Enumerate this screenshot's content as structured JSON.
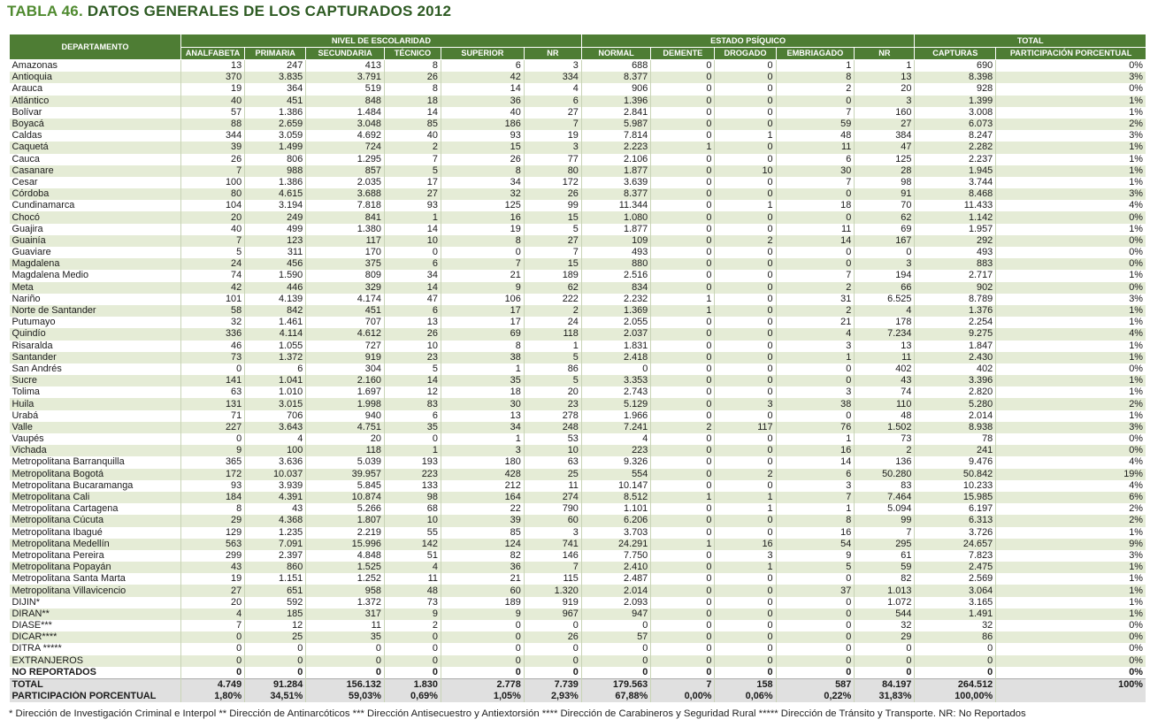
{
  "title": {
    "prefix": "TABLA 46.",
    "main": "DATOS GENERALES DE LOS CAPTURADOS",
    "year": "2012"
  },
  "headers": {
    "departamento": "DEPARTAMENTO",
    "groups": [
      "NIVEL DE ESCOLARIDAD",
      "ESTADO PSÍQUICO",
      "TOTAL"
    ],
    "columns": [
      "ANALFABETA",
      "PRIMARIA",
      "SECUNDARIA",
      "TÉCNICO",
      "SUPERIOR",
      "NR",
      "NORMAL",
      "DEMENTE",
      "DROGADO",
      "EMBRIAGADO",
      "NR",
      "CAPTURAS",
      "PARTICIPACIÓN PORCENTUAL"
    ]
  },
  "rows": [
    [
      "Amazonas",
      "13",
      "247",
      "413",
      "8",
      "6",
      "3",
      "688",
      "0",
      "0",
      "1",
      "1",
      "690",
      "0%"
    ],
    [
      "Antioquia",
      "370",
      "3.835",
      "3.791",
      "26",
      "42",
      "334",
      "8.377",
      "0",
      "0",
      "8",
      "13",
      "8.398",
      "3%"
    ],
    [
      "Arauca",
      "19",
      "364",
      "519",
      "8",
      "14",
      "4",
      "906",
      "0",
      "0",
      "2",
      "20",
      "928",
      "0%"
    ],
    [
      "Atlántico",
      "40",
      "451",
      "848",
      "18",
      "36",
      "6",
      "1.396",
      "0",
      "0",
      "0",
      "3",
      "1.399",
      "1%"
    ],
    [
      "Bolívar",
      "57",
      "1.386",
      "1.484",
      "14",
      "40",
      "27",
      "2.841",
      "0",
      "0",
      "7",
      "160",
      "3.008",
      "1%"
    ],
    [
      "Boyacá",
      "88",
      "2.659",
      "3.048",
      "85",
      "186",
      "7",
      "5.987",
      "0",
      "0",
      "59",
      "27",
      "6.073",
      "2%"
    ],
    [
      "Caldas",
      "344",
      "3.059",
      "4.692",
      "40",
      "93",
      "19",
      "7.814",
      "0",
      "1",
      "48",
      "384",
      "8.247",
      "3%"
    ],
    [
      "Caquetá",
      "39",
      "1.499",
      "724",
      "2",
      "15",
      "3",
      "2.223",
      "1",
      "0",
      "11",
      "47",
      "2.282",
      "1%"
    ],
    [
      "Cauca",
      "26",
      "806",
      "1.295",
      "7",
      "26",
      "77",
      "2.106",
      "0",
      "0",
      "6",
      "125",
      "2.237",
      "1%"
    ],
    [
      "Casanare",
      "7",
      "988",
      "857",
      "5",
      "8",
      "80",
      "1.877",
      "0",
      "10",
      "30",
      "28",
      "1.945",
      "1%"
    ],
    [
      "Cesar",
      "100",
      "1.386",
      "2.035",
      "17",
      "34",
      "172",
      "3.639",
      "0",
      "0",
      "7",
      "98",
      "3.744",
      "1%"
    ],
    [
      "Córdoba",
      "80",
      "4.615",
      "3.688",
      "27",
      "32",
      "26",
      "8.377",
      "0",
      "0",
      "0",
      "91",
      "8.468",
      "3%"
    ],
    [
      "Cundinamarca",
      "104",
      "3.194",
      "7.818",
      "93",
      "125",
      "99",
      "11.344",
      "0",
      "1",
      "18",
      "70",
      "11.433",
      "4%"
    ],
    [
      "Chocó",
      "20",
      "249",
      "841",
      "1",
      "16",
      "15",
      "1.080",
      "0",
      "0",
      "0",
      "62",
      "1.142",
      "0%"
    ],
    [
      "Guajira",
      "40",
      "499",
      "1.380",
      "14",
      "19",
      "5",
      "1.877",
      "0",
      "0",
      "11",
      "69",
      "1.957",
      "1%"
    ],
    [
      "Guainía",
      "7",
      "123",
      "117",
      "10",
      "8",
      "27",
      "109",
      "0",
      "2",
      "14",
      "167",
      "292",
      "0%"
    ],
    [
      "Guaviare",
      "5",
      "311",
      "170",
      "0",
      "0",
      "7",
      "493",
      "0",
      "0",
      "0",
      "0",
      "493",
      "0%"
    ],
    [
      "Magdalena",
      "24",
      "456",
      "375",
      "6",
      "7",
      "15",
      "880",
      "0",
      "0",
      "0",
      "3",
      "883",
      "0%"
    ],
    [
      "Magdalena Medio",
      "74",
      "1.590",
      "809",
      "34",
      "21",
      "189",
      "2.516",
      "0",
      "0",
      "7",
      "194",
      "2.717",
      "1%"
    ],
    [
      "Meta",
      "42",
      "446",
      "329",
      "14",
      "9",
      "62",
      "834",
      "0",
      "0",
      "2",
      "66",
      "902",
      "0%"
    ],
    [
      "Nariño",
      "101",
      "4.139",
      "4.174",
      "47",
      "106",
      "222",
      "2.232",
      "1",
      "0",
      "31",
      "6.525",
      "8.789",
      "3%"
    ],
    [
      "Norte de Santander",
      "58",
      "842",
      "451",
      "6",
      "17",
      "2",
      "1.369",
      "1",
      "0",
      "2",
      "4",
      "1.376",
      "1%"
    ],
    [
      "Putumayo",
      "32",
      "1.461",
      "707",
      "13",
      "17",
      "24",
      "2.055",
      "0",
      "0",
      "21",
      "178",
      "2.254",
      "1%"
    ],
    [
      "Quindío",
      "336",
      "4.114",
      "4.612",
      "26",
      "69",
      "118",
      "2.037",
      "0",
      "0",
      "4",
      "7.234",
      "9.275",
      "4%"
    ],
    [
      "Risaralda",
      "46",
      "1.055",
      "727",
      "10",
      "8",
      "1",
      "1.831",
      "0",
      "0",
      "3",
      "13",
      "1.847",
      "1%"
    ],
    [
      "Santander",
      "73",
      "1.372",
      "919",
      "23",
      "38",
      "5",
      "2.418",
      "0",
      "0",
      "1",
      "11",
      "2.430",
      "1%"
    ],
    [
      "San Andrés",
      "0",
      "6",
      "304",
      "5",
      "1",
      "86",
      "0",
      "0",
      "0",
      "0",
      "402",
      "402",
      "0%"
    ],
    [
      "Sucre",
      "141",
      "1.041",
      "2.160",
      "14",
      "35",
      "5",
      "3.353",
      "0",
      "0",
      "0",
      "43",
      "3.396",
      "1%"
    ],
    [
      "Tolima",
      "63",
      "1.010",
      "1.697",
      "12",
      "18",
      "20",
      "2.743",
      "0",
      "0",
      "3",
      "74",
      "2.820",
      "1%"
    ],
    [
      "Huila",
      "131",
      "3.015",
      "1.998",
      "83",
      "30",
      "23",
      "5.129",
      "0",
      "3",
      "38",
      "110",
      "5.280",
      "2%"
    ],
    [
      "Urabá",
      "71",
      "706",
      "940",
      "6",
      "13",
      "278",
      "1.966",
      "0",
      "0",
      "0",
      "48",
      "2.014",
      "1%"
    ],
    [
      "Valle",
      "227",
      "3.643",
      "4.751",
      "35",
      "34",
      "248",
      "7.241",
      "2",
      "117",
      "76",
      "1.502",
      "8.938",
      "3%"
    ],
    [
      "Vaupés",
      "0",
      "4",
      "20",
      "0",
      "1",
      "53",
      "4",
      "0",
      "0",
      "1",
      "73",
      "78",
      "0%"
    ],
    [
      "Vichada",
      "9",
      "100",
      "118",
      "1",
      "3",
      "10",
      "223",
      "0",
      "0",
      "16",
      "2",
      "241",
      "0%"
    ],
    [
      "Metropolitana Barranquilla",
      "365",
      "3.636",
      "5.039",
      "193",
      "180",
      "63",
      "9.326",
      "0",
      "0",
      "14",
      "136",
      "9.476",
      "4%"
    ],
    [
      "Metropolitana Bogotá",
      "172",
      "10.037",
      "39.957",
      "223",
      "428",
      "25",
      "554",
      "0",
      "2",
      "6",
      "50.280",
      "50.842",
      "19%"
    ],
    [
      "Metropolitana Bucaramanga",
      "93",
      "3.939",
      "5.845",
      "133",
      "212",
      "11",
      "10.147",
      "0",
      "0",
      "3",
      "83",
      "10.233",
      "4%"
    ],
    [
      "Metropolitana Cali",
      "184",
      "4.391",
      "10.874",
      "98",
      "164",
      "274",
      "8.512",
      "1",
      "1",
      "7",
      "7.464",
      "15.985",
      "6%"
    ],
    [
      "Metropolitana Cartagena",
      "8",
      "43",
      "5.266",
      "68",
      "22",
      "790",
      "1.101",
      "0",
      "1",
      "1",
      "5.094",
      "6.197",
      "2%"
    ],
    [
      "Metropolitana Cúcuta",
      "29",
      "4.368",
      "1.807",
      "10",
      "39",
      "60",
      "6.206",
      "0",
      "0",
      "8",
      "99",
      "6.313",
      "2%"
    ],
    [
      "Metropolitana Ibagué",
      "129",
      "1.235",
      "2.219",
      "55",
      "85",
      "3",
      "3.703",
      "0",
      "0",
      "16",
      "7",
      "3.726",
      "1%"
    ],
    [
      "Metropolitana Medellín",
      "563",
      "7.091",
      "15.996",
      "142",
      "124",
      "741",
      "24.291",
      "1",
      "16",
      "54",
      "295",
      "24.657",
      "9%"
    ],
    [
      "Metropolitana Pereira",
      "299",
      "2.397",
      "4.848",
      "51",
      "82",
      "146",
      "7.750",
      "0",
      "3",
      "9",
      "61",
      "7.823",
      "3%"
    ],
    [
      "Metropolitana Popayán",
      "43",
      "860",
      "1.525",
      "4",
      "36",
      "7",
      "2.410",
      "0",
      "1",
      "5",
      "59",
      "2.475",
      "1%"
    ],
    [
      "Metropolitana Santa Marta",
      "19",
      "1.151",
      "1.252",
      "11",
      "21",
      "115",
      "2.487",
      "0",
      "0",
      "0",
      "82",
      "2.569",
      "1%"
    ],
    [
      "Metropolitana Villavicencio",
      "27",
      "651",
      "958",
      "48",
      "60",
      "1.320",
      "2.014",
      "0",
      "0",
      "37",
      "1.013",
      "3.064",
      "1%"
    ],
    [
      "DIJIN*",
      "20",
      "592",
      "1.372",
      "73",
      "189",
      "919",
      "2.093",
      "0",
      "0",
      "0",
      "1.072",
      "3.165",
      "1%"
    ],
    [
      "DIRAN**",
      "4",
      "185",
      "317",
      "9",
      "9",
      "967",
      "947",
      "0",
      "0",
      "0",
      "544",
      "1.491",
      "1%"
    ],
    [
      "DIASE***",
      "7",
      "12",
      "11",
      "2",
      "0",
      "0",
      "0",
      "0",
      "0",
      "0",
      "32",
      "32",
      "0%"
    ],
    [
      "DICAR****",
      "0",
      "25",
      "35",
      "0",
      "0",
      "26",
      "57",
      "0",
      "0",
      "0",
      "29",
      "86",
      "0%"
    ],
    [
      "DITRA *****",
      "0",
      "0",
      "0",
      "0",
      "0",
      "0",
      "0",
      "0",
      "0",
      "0",
      "0",
      "0",
      "0%"
    ],
    [
      "EXTRANJEROS",
      "0",
      "0",
      "0",
      "0",
      "0",
      "0",
      "0",
      "0",
      "0",
      "0",
      "0",
      "0",
      "0%"
    ],
    [
      "NO REPORTADOS",
      "0",
      "0",
      "0",
      "0",
      "0",
      "0",
      "0",
      "0",
      "0",
      "0",
      "0",
      "0",
      "0%"
    ]
  ],
  "total": [
    "TOTAL",
    "4.749",
    "91.284",
    "156.132",
    "1.830",
    "2.778",
    "7.739",
    "179.563",
    "7",
    "158",
    "587",
    "84.197",
    "264.512",
    "100%"
  ],
  "participacion": [
    "PARTICIPACIÓN PORCENTUAL",
    "1,80%",
    "34,51%",
    "59,03%",
    "0,69%",
    "1,05%",
    "2,93%",
    "67,88%",
    "0,00%",
    "0,06%",
    "0,22%",
    "31,83%",
    "100,00%",
    ""
  ],
  "footnote": "* Dirección de Investigación Criminal e Interpol  ** Dirección de Antinarcóticos  *** Dirección Antisecuestro y Antiextorsión  **** Dirección de Carabineros y Seguridad Rural  ***** Dirección de Tránsito y Transporte.  NR: No Reportados"
}
